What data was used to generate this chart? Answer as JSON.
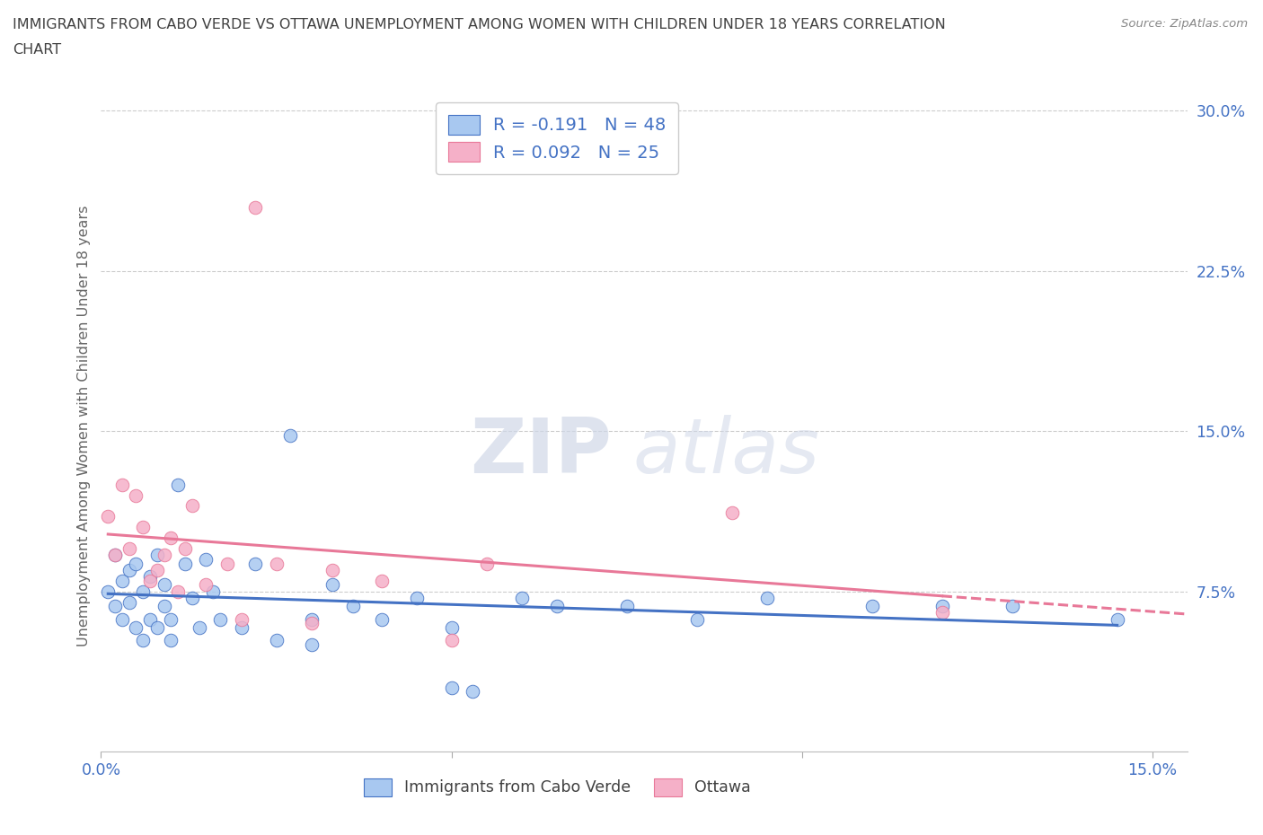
{
  "title_line1": "IMMIGRANTS FROM CABO VERDE VS OTTAWA UNEMPLOYMENT AMONG WOMEN WITH CHILDREN UNDER 18 YEARS CORRELATION",
  "title_line2": "CHART",
  "source": "Source: ZipAtlas.com",
  "ylabel": "Unemployment Among Women with Children Under 18 years",
  "xlim": [
    0.0,
    0.155
  ],
  "ylim": [
    0.0,
    0.305
  ],
  "xtick_positions": [
    0.0,
    0.05,
    0.1,
    0.15
  ],
  "xticklabels": [
    "0.0%",
    "",
    "",
    "15.0%"
  ],
  "ytick_positions": [
    0.075,
    0.15,
    0.225,
    0.3
  ],
  "yticklabels": [
    "7.5%",
    "15.0%",
    "22.5%",
    "30.0%"
  ],
  "cabo_x": [
    0.001,
    0.002,
    0.002,
    0.003,
    0.003,
    0.004,
    0.004,
    0.005,
    0.005,
    0.006,
    0.006,
    0.007,
    0.007,
    0.008,
    0.008,
    0.009,
    0.009,
    0.01,
    0.01,
    0.011,
    0.012,
    0.013,
    0.014,
    0.015,
    0.016,
    0.017,
    0.02,
    0.022,
    0.025,
    0.027,
    0.03,
    0.033,
    0.036,
    0.04,
    0.045,
    0.05,
    0.053,
    0.06,
    0.065,
    0.075,
    0.085,
    0.095,
    0.11,
    0.12,
    0.13,
    0.145,
    0.05,
    0.03
  ],
  "cabo_y": [
    0.075,
    0.068,
    0.092,
    0.062,
    0.08,
    0.085,
    0.07,
    0.058,
    0.088,
    0.052,
    0.075,
    0.062,
    0.082,
    0.058,
    0.092,
    0.068,
    0.078,
    0.052,
    0.062,
    0.125,
    0.088,
    0.072,
    0.058,
    0.09,
    0.075,
    0.062,
    0.058,
    0.088,
    0.052,
    0.148,
    0.062,
    0.078,
    0.068,
    0.062,
    0.072,
    0.058,
    0.028,
    0.072,
    0.068,
    0.068,
    0.062,
    0.072,
    0.068,
    0.068,
    0.068,
    0.062,
    0.03,
    0.05
  ],
  "ottawa_x": [
    0.001,
    0.002,
    0.003,
    0.004,
    0.005,
    0.006,
    0.007,
    0.008,
    0.009,
    0.01,
    0.011,
    0.012,
    0.013,
    0.015,
    0.018,
    0.02,
    0.022,
    0.025,
    0.03,
    0.033,
    0.04,
    0.05,
    0.055,
    0.09,
    0.12
  ],
  "ottawa_y": [
    0.11,
    0.092,
    0.125,
    0.095,
    0.12,
    0.105,
    0.08,
    0.085,
    0.092,
    0.1,
    0.075,
    0.095,
    0.115,
    0.078,
    0.088,
    0.062,
    0.255,
    0.088,
    0.06,
    0.085,
    0.08,
    0.052,
    0.088,
    0.112,
    0.065
  ],
  "cabo_color": "#a8c8f0",
  "ottawa_color": "#f5b0c8",
  "cabo_edge": "#4472c4",
  "ottawa_edge": "#e87898",
  "cabo_line": "#4472c4",
  "ottawa_line": "#e87898",
  "cabo_r": -0.191,
  "cabo_n": 48,
  "ottawa_r": 0.092,
  "ottawa_n": 25,
  "watermark_zip": "ZIP",
  "watermark_atlas": "atlas",
  "bg_color": "#ffffff",
  "grid_color": "#cccccc",
  "tick_color": "#4472c4",
  "title_color": "#404040"
}
